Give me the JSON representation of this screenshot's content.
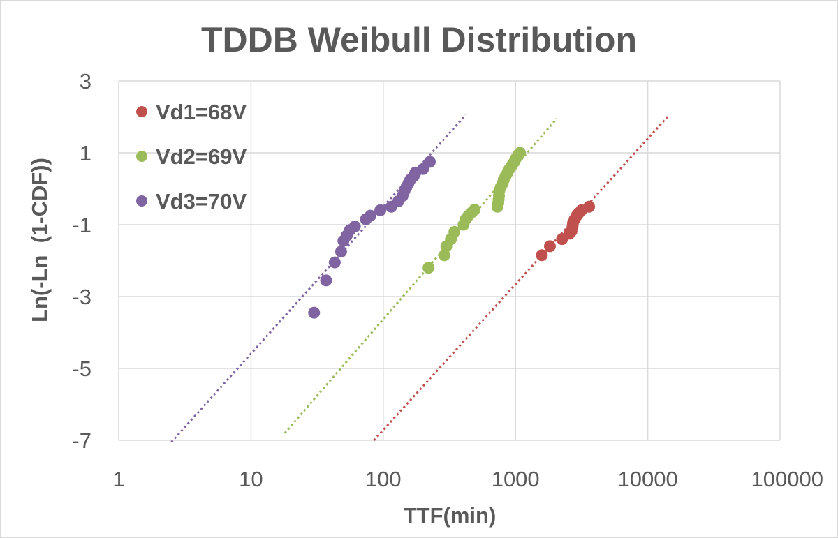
{
  "chart_data": {
    "type": "scatter",
    "title": "TDDB Weibull Distribution",
    "xlabel": "TTF(min)",
    "ylabel": "Ln(-Ln  (1-CDF))",
    "x_scale": "log",
    "xlim": [
      1,
      100000
    ],
    "ylim": [
      -7,
      3
    ],
    "x_ticks": [
      1,
      10,
      100,
      1000,
      10000,
      100000
    ],
    "x_tick_labels": [
      "1",
      "10",
      "100",
      "1000",
      "10000",
      "100000"
    ],
    "y_ticks": [
      -7,
      -5,
      -3,
      -1,
      1,
      3
    ],
    "y_tick_labels": [
      "-7",
      "-5",
      "-3",
      "-1",
      "1",
      "3"
    ],
    "grid": true,
    "legend_position": "top-left",
    "series": [
      {
        "name": "Vd1=68V",
        "color": "#c0504d",
        "points": [
          [
            1580,
            -1.85
          ],
          [
            1820,
            -1.6
          ],
          [
            2250,
            -1.4
          ],
          [
            2550,
            -1.25
          ],
          [
            2650,
            -1.18
          ],
          [
            2700,
            -1.05
          ],
          [
            2720,
            -0.95
          ],
          [
            2800,
            -0.85
          ],
          [
            2900,
            -0.75
          ],
          [
            3000,
            -0.68
          ],
          [
            3150,
            -0.6
          ],
          [
            3600,
            -0.5
          ]
        ],
        "trendline": [
          [
            85,
            -7
          ],
          [
            14500,
            2.05
          ]
        ]
      },
      {
        "name": "Vd2=69V",
        "color": "#9bbb59",
        "points": [
          [
            220,
            -2.2
          ],
          [
            290,
            -1.85
          ],
          [
            300,
            -1.6
          ],
          [
            325,
            -1.4
          ],
          [
            345,
            -1.2
          ],
          [
            405,
            -1.0
          ],
          [
            420,
            -0.85
          ],
          [
            440,
            -0.75
          ],
          [
            470,
            -0.65
          ],
          [
            490,
            -0.58
          ],
          [
            730,
            -0.5
          ],
          [
            740,
            -0.4
          ],
          [
            745,
            -0.3
          ],
          [
            750,
            -0.2
          ],
          [
            755,
            -0.05
          ],
          [
            775,
            0.05
          ],
          [
            800,
            0.15
          ],
          [
            815,
            0.25
          ],
          [
            840,
            0.35
          ],
          [
            870,
            0.45
          ],
          [
            900,
            0.55
          ],
          [
            940,
            0.65
          ],
          [
            980,
            0.75
          ],
          [
            1010,
            0.85
          ],
          [
            1050,
            0.95
          ],
          [
            1080,
            1.0
          ]
        ],
        "trendline": [
          [
            18,
            -6.8
          ],
          [
            2050,
            1.95
          ]
        ]
      },
      {
        "name": "Vd3=70V",
        "color": "#8064a2",
        "points": [
          [
            30,
            -3.45
          ],
          [
            37,
            -2.55
          ],
          [
            43,
            -2.05
          ],
          [
            48,
            -1.75
          ],
          [
            50,
            -1.45
          ],
          [
            53,
            -1.3
          ],
          [
            56,
            -1.15
          ],
          [
            61,
            -1.05
          ],
          [
            74,
            -0.85
          ],
          [
            80,
            -0.75
          ],
          [
            95,
            -0.6
          ],
          [
            115,
            -0.5
          ],
          [
            130,
            -0.35
          ],
          [
            140,
            -0.2
          ],
          [
            145,
            -0.05
          ],
          [
            150,
            0.05
          ],
          [
            155,
            0.15
          ],
          [
            160,
            0.25
          ],
          [
            170,
            0.35
          ],
          [
            175,
            0.45
          ],
          [
            200,
            0.55
          ],
          [
            225,
            0.75
          ]
        ],
        "trendline": [
          [
            2.5,
            -7.05
          ],
          [
            420,
            2.05
          ]
        ]
      }
    ]
  }
}
